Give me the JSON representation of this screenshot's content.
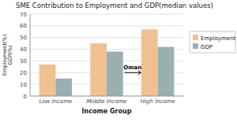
{
  "chart_data": {
    "type": "bar",
    "title": "SME Contribution to Employment and GDP(median values)",
    "xlabel": "Income Group",
    "ylabel": "Employment(%)\nGDP(%)",
    "categories": [
      "Low Income",
      "Middle Income",
      "High Income"
    ],
    "series": [
      {
        "name": "Employment",
        "color": "#f0c090",
        "values": [
          27,
          45,
          57
        ]
      },
      {
        "name": "GDP",
        "color": "#9ab0b0",
        "values": [
          15,
          38,
          42
        ]
      }
    ],
    "ylim": [
      0,
      70
    ],
    "yticks": [
      0,
      10,
      20,
      30,
      40,
      50,
      60,
      70
    ],
    "grid": true,
    "legend": "right",
    "annotations": [
      {
        "text": "Oman",
        "y": 20
      }
    ]
  }
}
